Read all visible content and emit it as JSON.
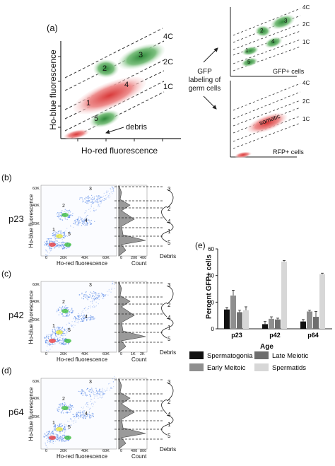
{
  "panel_a": {
    "label": "(a)",
    "ylabel": "Ho-blue  fluorescence",
    "xlabel": "Ho-red  fluorescence",
    "debris_label": "debris",
    "ploidy": [
      "4C",
      "2C",
      "1C"
    ],
    "clusters": [
      "1",
      "2",
      "3",
      "4",
      "5"
    ],
    "center_text": "GFP labeling of germ cells",
    "gfp_title": "GFP+ cells",
    "rfp_title": "RFP+ cells",
    "somatic_label": "somatic",
    "small_ploidy": [
      "4C",
      "2C",
      "1C"
    ]
  },
  "flow_panels": [
    {
      "label": "(b)",
      "age": "p23",
      "xticks": [
        "0",
        "20K",
        "40K",
        "60K"
      ],
      "yticks": [
        "60K",
        "40K",
        "20K"
      ],
      "countticks": [
        "0",
        "200",
        "400"
      ]
    },
    {
      "label": "(c)",
      "age": "p42",
      "xticks": [
        "0",
        "20K",
        "40K",
        "60K"
      ],
      "yticks": [
        "60K",
        "40K",
        "20K"
      ],
      "countticks": [
        "0",
        "1K",
        "2K"
      ]
    },
    {
      "label": "(d)",
      "age": "p64",
      "xticks": [
        "0",
        "20K",
        "40K",
        "60K"
      ],
      "yticks": [
        "60K",
        "40K",
        "20K"
      ],
      "countticks": [
        "0",
        "400",
        "800"
      ]
    }
  ],
  "flow_common": {
    "xlabel": "Ho-red fluorescence",
    "ylabel": "Ho-blue fluorescence",
    "count_label": "Count",
    "debris_label": "Debris",
    "cluster_labels": [
      "1",
      "2",
      "3",
      "4",
      "5"
    ],
    "arrow_numbers": [
      "3",
      "2",
      "4",
      "1",
      "5"
    ]
  },
  "panel_e": {
    "label": "(e)"
  },
  "chart_data": {
    "type": "bar",
    "title": "",
    "xlabel": "Age",
    "ylabel": "Percent GFP+ cells",
    "categories": [
      "p23",
      "p42",
      "p64"
    ],
    "ylim": [
      0,
      60
    ],
    "yticks": [
      0,
      20,
      40,
      60
    ],
    "series": [
      {
        "name": "Spermatogonia",
        "color": "#111111",
        "values": [
          14.5,
          3.5,
          5.5
        ],
        "errors": [
          1.5,
          2,
          1.5
        ]
      },
      {
        "name": "Early Meitoic",
        "color": "#8f8f8f",
        "values": [
          25,
          7.5,
          13
        ],
        "errors": [
          4,
          1.5,
          1
        ]
      },
      {
        "name": "Late Meiotic",
        "color": "#6e6e6e",
        "values": [
          12.5,
          7,
          9
        ],
        "errors": [
          1.5,
          1,
          4
        ]
      },
      {
        "name": "Spermatids",
        "color": "#d7d7d7",
        "values": [
          14,
          50.5,
          41
        ],
        "errors": [
          2.5,
          0.8,
          0.8
        ]
      }
    ]
  }
}
